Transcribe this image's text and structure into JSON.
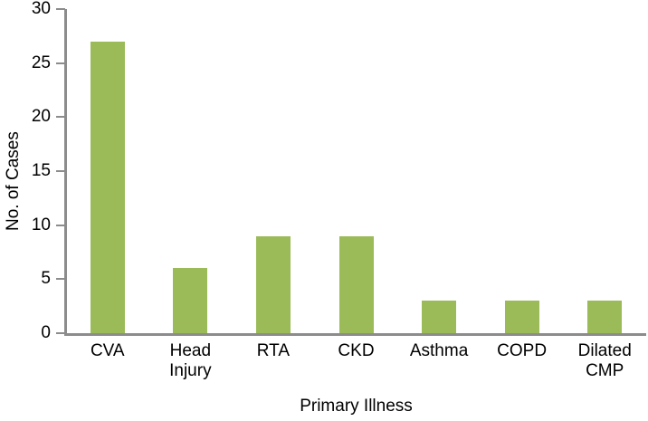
{
  "chart_data": {
    "type": "bar",
    "categories": [
      "CVA",
      "Head Injury",
      "RTA",
      "CKD",
      "Asthma",
      "COPD",
      "Dilated CMP"
    ],
    "category_label_lines": [
      [
        "CVA"
      ],
      [
        "Head",
        "Injury"
      ],
      [
        "RTA"
      ],
      [
        "CKD"
      ],
      [
        "Asthma"
      ],
      [
        "COPD"
      ],
      [
        "Dilated",
        "CMP"
      ]
    ],
    "values": [
      27,
      6,
      9,
      9,
      3,
      3,
      3
    ],
    "xlabel": "Primary Illness",
    "ylabel": "No. of Cases",
    "ylim": [
      0,
      30
    ],
    "yticks": [
      0,
      5,
      10,
      15,
      20,
      25,
      30
    ],
    "grid": false,
    "legend": false,
    "bar_color": "#9BBB59",
    "axis_color": "#8C8C8C",
    "text_color": "#000000"
  }
}
